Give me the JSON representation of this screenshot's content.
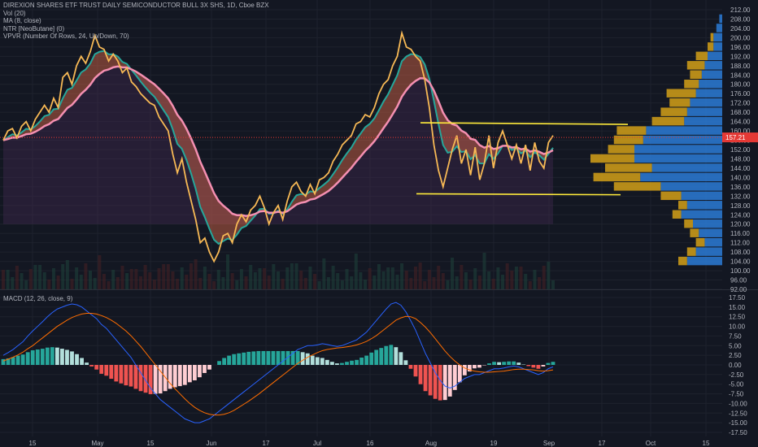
{
  "legend": {
    "title": "DIREXION SHARES ETF TRUST DAILY SEMICONDUCTOR BULL 3X SHS, 1D, Cboe BZX",
    "lines": [
      "Vol (20)",
      "MA (8, close)",
      "NTR [NeoButane] (0)",
      "VPVR (Number Of Rows, 24, Up/Down, 70)"
    ]
  },
  "macd_legend": "MACD (12, 26, close, 9)",
  "colors": {
    "background": "#131722",
    "price_line": "#f7b955",
    "macd_line": "#2962ff",
    "signal_line": "#ff6d00",
    "hist_pos": "#26a69a",
    "hist_pos_light": "#b2dfdb",
    "hist_neg": "#ef5350",
    "hist_neg_light": "#ffcdd2",
    "vp_up": "#2b7bd6",
    "vp_down": "#d4a017",
    "annotation": "#ffeb3b",
    "current_price_bg": "#e53935"
  },
  "current_price_label": "157.21",
  "chart_data": [
    {
      "type": "line",
      "title": "DIREXION SHARES ETF TRUST DAILY SEMICONDUCTOR BULL 3X SHS, 1D, Cboe BZX",
      "x_ticks": [
        "15",
        "May",
        "15",
        "Jun",
        "17",
        "Jul",
        "16",
        "Aug",
        "19",
        "Sep",
        "17",
        "Oct",
        "15"
      ],
      "y_ticks": [
        "212.00",
        "208.00",
        "204.00",
        "200.00",
        "196.00",
        "192.00",
        "188.00",
        "184.00",
        "180.00",
        "176.00",
        "172.00",
        "168.00",
        "164.00",
        "160.00",
        "156.00",
        "152.00",
        "148.00",
        "144.00",
        "140.00",
        "136.00",
        "132.00",
        "128.00",
        "124.00",
        "120.00",
        "116.00",
        "112.00",
        "108.00",
        "104.00",
        "100.00",
        "96.00",
        "92.00"
      ],
      "ylim": [
        92,
        212
      ],
      "series": [
        {
          "type": "line",
          "values": [
            156,
            160,
            161,
            157,
            162,
            164,
            160,
            165,
            168,
            171,
            168,
            174,
            170,
            183,
            185,
            180,
            188,
            192,
            189,
            194,
            201,
            196,
            195,
            190,
            193,
            190,
            185,
            187,
            181,
            179,
            176,
            174,
            172,
            171,
            166,
            163,
            160,
            150,
            142,
            148,
            138,
            130,
            122,
            112,
            114,
            108,
            104,
            108,
            115,
            116,
            112,
            120,
            124,
            121,
            126,
            128,
            132,
            127,
            120,
            125,
            128,
            122,
            130,
            136,
            138,
            134,
            132,
            137,
            133,
            139,
            140,
            142,
            147,
            150,
            154,
            156,
            158,
            163,
            164,
            167,
            166,
            170,
            176,
            180,
            182,
            188,
            192,
            202,
            196,
            195,
            192,
            190,
            182,
            170,
            154,
            143,
            136,
            144,
            152,
            158,
            146,
            152,
            141,
            153,
            139,
            146,
            158,
            144,
            155,
            160,
            154,
            148,
            154,
            146,
            154,
            143,
            155,
            147,
            144,
            155,
            158
          ]
        }
      ],
      "price_annotations": [
        {
          "name": "upper-resistance",
          "y_from": 163.5,
          "y_to": 162.8
        },
        {
          "name": "lower-support",
          "y_from": 133.0,
          "y_to": 132.6
        }
      ],
      "volume_profile": [
        {
          "price": 208,
          "up": 1,
          "down": 0
        },
        {
          "price": 204,
          "up": 2,
          "down": 0
        },
        {
          "price": 200,
          "up": 3,
          "down": 1
        },
        {
          "price": 196,
          "up": 3,
          "down": 2
        },
        {
          "price": 192,
          "up": 5,
          "down": 4
        },
        {
          "price": 188,
          "up": 6,
          "down": 6
        },
        {
          "price": 184,
          "up": 7,
          "down": 4
        },
        {
          "price": 180,
          "up": 8,
          "down": 5
        },
        {
          "price": 176,
          "up": 9,
          "down": 10
        },
        {
          "price": 172,
          "up": 11,
          "down": 7
        },
        {
          "price": 168,
          "up": 12,
          "down": 9
        },
        {
          "price": 164,
          "up": 13,
          "down": 11
        },
        {
          "price": 160,
          "up": 26,
          "down": 10
        },
        {
          "price": 156,
          "up": 27,
          "down": 10
        },
        {
          "price": 152,
          "up": 30,
          "down": 9
        },
        {
          "price": 148,
          "up": 30,
          "down": 15
        },
        {
          "price": 144,
          "up": 24,
          "down": 16
        },
        {
          "price": 140,
          "up": 28,
          "down": 16
        },
        {
          "price": 136,
          "up": 21,
          "down": 16
        },
        {
          "price": 132,
          "up": 14,
          "down": 7
        },
        {
          "price": 128,
          "up": 12,
          "down": 3
        },
        {
          "price": 124,
          "up": 14,
          "down": 3
        },
        {
          "price": 120,
          "up": 10,
          "down": 3
        },
        {
          "price": 116,
          "up": 8,
          "down": 3
        },
        {
          "price": 112,
          "up": 6,
          "down": 3
        },
        {
          "price": 108,
          "up": 9,
          "down": 3
        },
        {
          "price": 104,
          "up": 12,
          "down": 3
        }
      ]
    },
    {
      "type": "line",
      "title": "MACD (12, 26, close, 9)",
      "y_ticks": [
        "17.50",
        "15.00",
        "12.50",
        "10.00",
        "7.50",
        "5.00",
        "2.50",
        "0.00",
        "-2.50",
        "-5.00",
        "-7.50",
        "-10.00",
        "-12.50",
        "-15.00",
        "-17.50"
      ],
      "ylim": [
        -17.5,
        17.5
      ],
      "series": [
        {
          "name": "MACD",
          "values": [
            2.5,
            3.2,
            4.0,
            5.0,
            6.0,
            7.5,
            8.8,
            10.0,
            11.2,
            12.5,
            13.6,
            14.5,
            15.0,
            15.5,
            15.8,
            15.6,
            15.0,
            14.0,
            13.0,
            12.0,
            10.5,
            9.5,
            8.0,
            6.5,
            5.0,
            3.5,
            2.0,
            0.0,
            -2.0,
            -4.0,
            -6.0,
            -7.5,
            -9.0,
            -10.0,
            -11.0,
            -12.0,
            -13.0,
            -14.0,
            -14.5,
            -15.0,
            -15.0,
            -14.5,
            -14.0,
            -13.0,
            -12.0,
            -11.0,
            -10.0,
            -9.0,
            -8.0,
            -7.0,
            -6.0,
            -5.0,
            -4.0,
            -3.0,
            -2.0,
            -1.0,
            0.0,
            1.0,
            2.0,
            3.0,
            4.0,
            4.5,
            5.0,
            5.0,
            5.2,
            5.5,
            5.3,
            5.0,
            4.8,
            5.0,
            5.5,
            6.0,
            6.5,
            7.5,
            8.5,
            10.0,
            11.5,
            13.0,
            14.5,
            15.8,
            16.2,
            15.5,
            13.8,
            11.5,
            9.0,
            6.0,
            3.0,
            0.5,
            -2.0,
            -4.0,
            -5.5,
            -6.0,
            -5.5,
            -4.5,
            -3.5,
            -3.0,
            -2.5,
            -2.5,
            -2.0,
            -1.5,
            -1.0,
            -1.0,
            -0.8,
            -0.5,
            -0.3,
            -0.5,
            -1.0,
            -1.5,
            -2.0,
            -2.5,
            -2.0,
            -1.0,
            -0.5
          ]
        },
        {
          "name": "Signal",
          "values": [
            1.0,
            1.5,
            2.0,
            2.6,
            3.3,
            4.2,
            5.0,
            6.0,
            7.0,
            8.0,
            9.0,
            10.0,
            10.8,
            11.6,
            12.3,
            12.8,
            13.2,
            13.4,
            13.4,
            13.2,
            12.8,
            12.3,
            11.6,
            10.8,
            9.8,
            8.8,
            7.6,
            6.2,
            4.8,
            3.2,
            1.6,
            0.0,
            -1.6,
            -3.2,
            -4.8,
            -6.2,
            -7.5,
            -8.8,
            -10.0,
            -11.0,
            -11.8,
            -12.4,
            -12.8,
            -13.0,
            -13.0,
            -12.8,
            -12.4,
            -11.8,
            -11.0,
            -10.2,
            -9.4,
            -8.5,
            -7.6,
            -6.6,
            -5.6,
            -4.6,
            -3.6,
            -2.6,
            -1.6,
            -0.6,
            0.4,
            1.2,
            2.0,
            2.6,
            3.2,
            3.7,
            4.0,
            4.2,
            4.4,
            4.5,
            4.7,
            4.9,
            5.2,
            5.6,
            6.1,
            6.8,
            7.6,
            8.6,
            9.6,
            10.6,
            11.6,
            12.2,
            12.6,
            12.5,
            12.0,
            11.0,
            9.8,
            8.4,
            6.8,
            5.2,
            3.6,
            2.2,
            1.0,
            0.0,
            -0.8,
            -1.3,
            -1.6,
            -1.8,
            -1.9,
            -1.9,
            -1.8,
            -1.7,
            -1.6,
            -1.4,
            -1.2,
            -1.1,
            -1.1,
            -1.2,
            -1.3,
            -1.5,
            -1.6,
            -1.5,
            -1.3
          ]
        }
      ]
    }
  ]
}
